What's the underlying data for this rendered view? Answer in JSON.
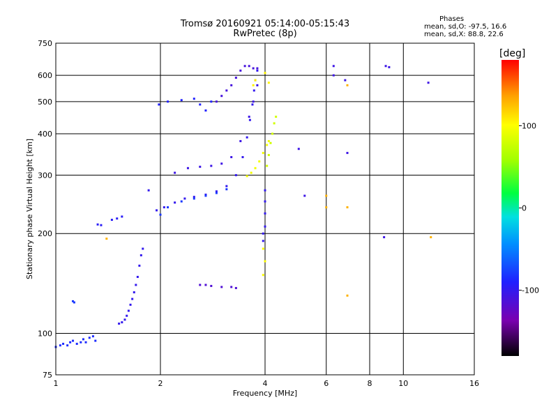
{
  "header": {
    "title_line1": "Tromsø 20160921 05:14:00-05:15:43",
    "title_line2": "RwPretec (8p)"
  },
  "phases": {
    "label": "Phases",
    "line1": "mean, sd,O: -97.5, 16.6",
    "line2": "mean, sd,X:  88.8, 22.6"
  },
  "colorbar": {
    "unit_label": "[deg]",
    "ticks": [
      {
        "label": "100",
        "value": 100
      },
      {
        "label": "0",
        "value": 0
      },
      {
        "label": "-100",
        "value": -100
      }
    ],
    "range": [
      -180,
      180
    ]
  },
  "chart_data": {
    "type": "scatter",
    "xlabel": "Frequency [MHz]",
    "ylabel": "Stationary phase Virtual Height [km]",
    "xscale": "log",
    "yscale": "log",
    "xlim": [
      1,
      16
    ],
    "ylim": [
      75,
      750
    ],
    "x_ticks": [
      {
        "label": "1",
        "value": 1
      },
      {
        "label": "2",
        "value": 2
      },
      {
        "label": "4",
        "value": 4
      },
      {
        "label": "6",
        "value": 6
      },
      {
        "label": "8",
        "value": 8
      },
      {
        "label": "10",
        "value": 10
      },
      {
        "label": "16",
        "value": 16
      }
    ],
    "y_ticks": [
      {
        "label": "75",
        "value": 75
      },
      {
        "label": "100",
        "value": 100
      },
      {
        "label": "200",
        "value": 200
      },
      {
        "label": "300",
        "value": 300
      },
      {
        "label": "400",
        "value": 400
      },
      {
        "label": "500",
        "value": 500
      },
      {
        "label": "600",
        "value": 600
      },
      {
        "label": "750",
        "value": 750
      }
    ],
    "grid": true,
    "color_scale": "rainbow phase [deg]",
    "traces": [
      {
        "name": "",
        "phase": -85,
        "points": [
          [
            1.0,
            91
          ],
          [
            1.03,
            92
          ],
          [
            1.05,
            93
          ],
          [
            1.08,
            92
          ],
          [
            1.1,
            94
          ],
          [
            1.12,
            95
          ],
          [
            1.15,
            93
          ],
          [
            1.18,
            94
          ],
          [
            1.2,
            96
          ],
          [
            1.22,
            94
          ],
          [
            1.25,
            97
          ],
          [
            1.28,
            98
          ],
          [
            1.3,
            95
          ]
        ]
      },
      {
        "name": "",
        "phase": -80,
        "points": [
          [
            1.12,
            125
          ],
          [
            1.13,
            124
          ]
        ]
      },
      {
        "name": "",
        "phase": -95,
        "points": [
          [
            1.32,
            213
          ],
          [
            1.35,
            212
          ],
          [
            1.45,
            220
          ],
          [
            1.5,
            222
          ],
          [
            1.55,
            225
          ]
        ]
      },
      {
        "name": "",
        "phase": -100,
        "points": [
          [
            1.52,
            107
          ],
          [
            1.55,
            108
          ],
          [
            1.58,
            110
          ],
          [
            1.6,
            113
          ],
          [
            1.62,
            117
          ],
          [
            1.64,
            122
          ],
          [
            1.66,
            127
          ],
          [
            1.68,
            133
          ],
          [
            1.7,
            140
          ],
          [
            1.72,
            148
          ],
          [
            1.74,
            160
          ],
          [
            1.76,
            172
          ],
          [
            1.78,
            180
          ]
        ]
      },
      {
        "name": "",
        "phase": -100,
        "points": [
          [
            1.85,
            270
          ],
          [
            1.95,
            235
          ],
          [
            2.05,
            240
          ],
          [
            2.2,
            248
          ],
          [
            2.35,
            255
          ],
          [
            2.5,
            258
          ],
          [
            2.7,
            262
          ],
          [
            2.9,
            268
          ],
          [
            3.1,
            278
          ],
          [
            3.3,
            300
          ],
          [
            3.45,
            340
          ],
          [
            3.55,
            390
          ],
          [
            3.62,
            440
          ],
          [
            3.68,
            490
          ],
          [
            3.72,
            540
          ],
          [
            3.75,
            580
          ],
          [
            3.8,
            620
          ]
        ]
      },
      {
        "name": "",
        "phase": -80,
        "points": [
          [
            2.0,
            228
          ],
          [
            2.1,
            240
          ],
          [
            2.3,
            250
          ],
          [
            2.5,
            255
          ],
          [
            2.7,
            260
          ],
          [
            2.9,
            265
          ],
          [
            3.1,
            272
          ]
        ]
      },
      {
        "name": "",
        "phase": -105,
        "points": [
          [
            2.2,
            305
          ],
          [
            2.4,
            315
          ],
          [
            2.6,
            318
          ],
          [
            2.8,
            320
          ],
          [
            3.0,
            325
          ],
          [
            3.2,
            340
          ],
          [
            3.4,
            380
          ],
          [
            3.6,
            450
          ],
          [
            3.7,
            500
          ],
          [
            3.8,
            560
          ]
        ]
      },
      {
        "name": "",
        "phase": -90,
        "points": [
          [
            1.98,
            490
          ],
          [
            2.1,
            500
          ],
          [
            2.3,
            505
          ],
          [
            2.5,
            510
          ],
          [
            2.6,
            490
          ],
          [
            2.7,
            470
          ],
          [
            2.8,
            500
          ]
        ]
      },
      {
        "name": "",
        "phase": -110,
        "points": [
          [
            2.9,
            500
          ],
          [
            3.0,
            520
          ],
          [
            3.1,
            540
          ],
          [
            3.2,
            560
          ],
          [
            3.3,
            590
          ],
          [
            3.4,
            620
          ],
          [
            3.5,
            640
          ],
          [
            3.6,
            640
          ],
          [
            3.7,
            630
          ],
          [
            3.8,
            630
          ]
        ]
      },
      {
        "name": "",
        "phase": -115,
        "points": [
          [
            2.6,
            140
          ],
          [
            2.7,
            140
          ],
          [
            2.8,
            139
          ],
          [
            3.0,
            138
          ],
          [
            3.2,
            138
          ],
          [
            3.3,
            137
          ]
        ]
      },
      {
        "name": "",
        "phase": 95,
        "points": [
          [
            3.55,
            298
          ],
          [
            3.65,
            305
          ],
          [
            3.75,
            315
          ],
          [
            3.85,
            330
          ],
          [
            3.95,
            350
          ],
          [
            4.05,
            370
          ],
          [
            4.1,
            380
          ]
        ]
      },
      {
        "name": "",
        "phase": 80,
        "points": [
          [
            4.05,
            320
          ],
          [
            4.1,
            345
          ],
          [
            4.15,
            375
          ],
          [
            4.2,
            400
          ],
          [
            4.25,
            430
          ],
          [
            4.3,
            450
          ]
        ]
      },
      {
        "name": "",
        "phase": 105,
        "points": [
          [
            3.7,
            560
          ],
          [
            3.75,
            580
          ],
          [
            4.0,
            610
          ],
          [
            4.1,
            570
          ]
        ]
      },
      {
        "name": "",
        "phase": -100,
        "points": [
          [
            3.95,
            200
          ],
          [
            4.0,
            210
          ],
          [
            4.0,
            230
          ],
          [
            4.0,
            250
          ],
          [
            4.0,
            270
          ],
          [
            3.95,
            190
          ]
        ]
      },
      {
        "name": "",
        "phase": 100,
        "points": [
          [
            3.95,
            180
          ],
          [
            4.0,
            165
          ],
          [
            3.95,
            150
          ]
        ]
      },
      {
        "name": "",
        "phase": -105,
        "points": [
          [
            5.0,
            360
          ],
          [
            5.2,
            260
          ],
          [
            6.3,
            640
          ],
          [
            6.3,
            600
          ],
          [
            6.8,
            580
          ],
          [
            6.9,
            350
          ],
          [
            8.9,
            640
          ],
          [
            9.1,
            635
          ],
          [
            11.8,
            570
          ],
          [
            8.8,
            195
          ]
        ]
      },
      {
        "name": "",
        "phase": 130,
        "points": [
          [
            6.0,
            260
          ],
          [
            6.0,
            240
          ],
          [
            6.9,
            240
          ],
          [
            6.9,
            560
          ],
          [
            6.9,
            130
          ],
          [
            12.0,
            195
          ],
          [
            1.4,
            193
          ]
        ]
      }
    ]
  }
}
